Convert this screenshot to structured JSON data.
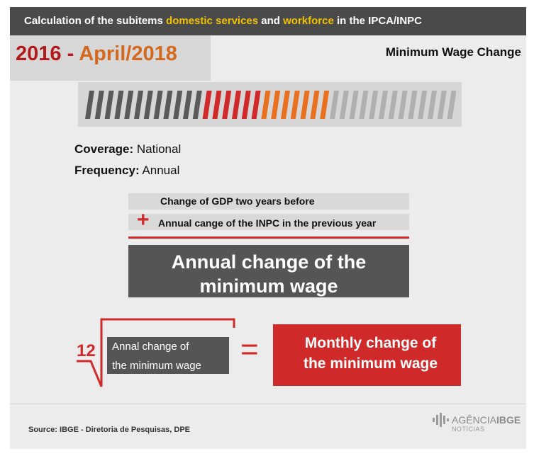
{
  "header": {
    "prefix": "Calculation of the subitems ",
    "term1": "domestic services",
    "and": " and ",
    "term2": "workforce",
    "suffix": " in the IPCA/INPC"
  },
  "period": {
    "start": "2016",
    "separator": " - ",
    "end": "April/2018"
  },
  "wage_title": "Minimum Wage Change",
  "info": {
    "coverage_label": "Coverage:",
    "coverage_value": " National",
    "frequency_label": "Frequency:",
    "frequency_value": " Annual"
  },
  "formula": {
    "gdp": "Change of GDP two years before",
    "plus": "+",
    "inpc": "Annual cange of the INPC in the previous year",
    "result_line1": "Annual change of the",
    "result_line2": "minimum wage"
  },
  "root": {
    "index": "12",
    "inner_line1": "Annal change of",
    "inner_line2": "the minimum wage",
    "equals": "=",
    "monthly_line1": "Monthly change of",
    "monthly_line2": "the minimum wage"
  },
  "footer": {
    "source": "Source: IBGE - Diretoria de Pesquisas, DPE",
    "logo_brand": "AGÊNCIA",
    "logo_brand_bold": "IBGE",
    "logo_sub": "NOTÍCIAS"
  },
  "colors": {
    "accent_red": "#d0292a",
    "accent_orange": "#e8701e",
    "highlight_yellow": "#f2c200",
    "dark_gray": "#555555"
  },
  "icons": [
    "stripe-bar-icon",
    "ibge-logo-icon"
  ]
}
